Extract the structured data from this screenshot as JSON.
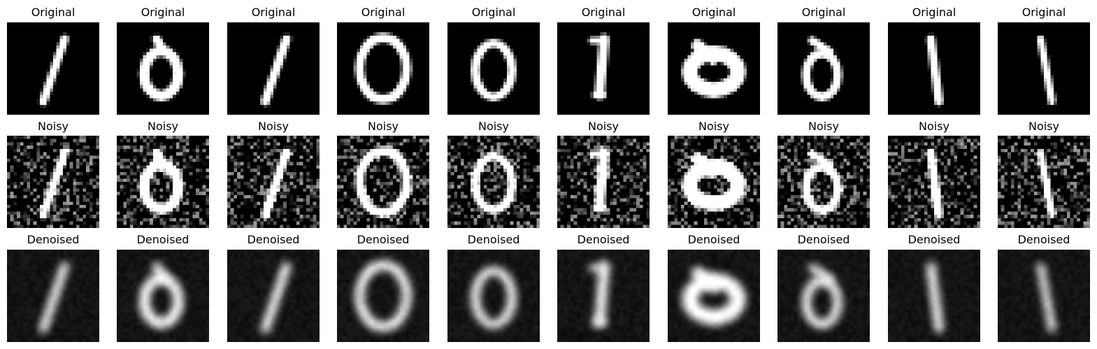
{
  "rows": [
    {
      "title": "Original",
      "kind": "original",
      "count": 10
    },
    {
      "title": "Noisy",
      "kind": "noisy",
      "count": 10
    },
    {
      "title": "Denoised",
      "kind": "denoised",
      "count": 10
    }
  ],
  "digits": [
    "1",
    "0",
    "1",
    "0",
    "0",
    "1",
    "0",
    "0",
    "1",
    "1"
  ],
  "colors": {
    "background": "#ffffff",
    "title": "#000000",
    "image_bg": "#000000",
    "stroke": "#ffffff"
  }
}
